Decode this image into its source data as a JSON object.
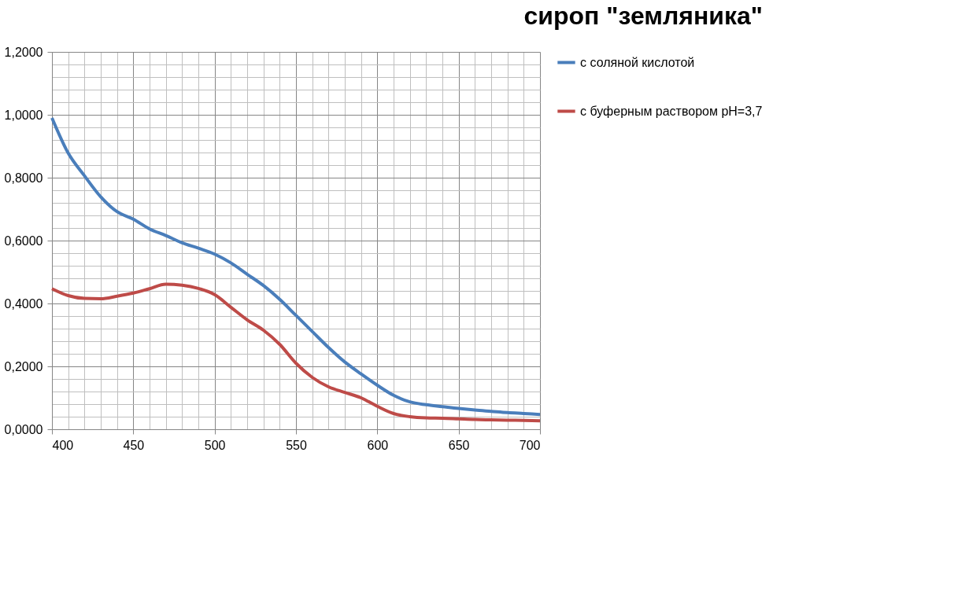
{
  "chart_data": {
    "type": "line",
    "title": "сироп \"земляника\"",
    "x": [
      400,
      410,
      420,
      430,
      440,
      450,
      460,
      470,
      480,
      490,
      500,
      510,
      520,
      530,
      540,
      550,
      560,
      570,
      580,
      590,
      600,
      610,
      620,
      630,
      640,
      650,
      660,
      670,
      680,
      690,
      700
    ],
    "series": [
      {
        "name": "с соляной кислотой",
        "color": "#4a7ebb",
        "values": [
          0.99,
          0.878,
          0.806,
          0.739,
          0.692,
          0.668,
          0.637,
          0.616,
          0.593,
          0.576,
          0.557,
          0.529,
          0.493,
          0.457,
          0.413,
          0.362,
          0.311,
          0.26,
          0.214,
          0.176,
          0.14,
          0.108,
          0.087,
          0.078,
          0.072,
          0.066,
          0.061,
          0.057,
          0.053,
          0.05,
          0.047
        ]
      },
      {
        "name": "с буферным раствором pH=3,7",
        "color": "#be4b48",
        "values": [
          0.447,
          0.425,
          0.416,
          0.415,
          0.423,
          0.433,
          0.447,
          0.461,
          0.458,
          0.448,
          0.428,
          0.388,
          0.348,
          0.315,
          0.27,
          0.21,
          0.165,
          0.135,
          0.117,
          0.1,
          0.073,
          0.05,
          0.04,
          0.036,
          0.035,
          0.033,
          0.031,
          0.03,
          0.029,
          0.028,
          0.027
        ]
      }
    ],
    "xlim": [
      400,
      700
    ],
    "xticks": [
      400,
      {
        "value": 410,
        "label": null
      },
      {
        "value": 420,
        "label": null
      },
      {
        "value": 430,
        "label": null
      },
      {
        "value": 440,
        "label": null
      },
      450,
      {
        "value": 460,
        "label": null
      },
      {
        "value": 470,
        "label": null
      },
      {
        "value": 480,
        "label": null
      },
      {
        "value": 490,
        "label": null
      },
      500,
      {
        "value": 510,
        "label": null
      },
      {
        "value": 520,
        "label": null
      },
      {
        "value": 530,
        "label": null
      },
      {
        "value": 540,
        "label": null
      },
      550,
      {
        "value": 560,
        "label": null
      },
      {
        "value": 570,
        "label": null
      },
      {
        "value": 580,
        "label": null
      },
      {
        "value": 590,
        "label": null
      },
      600,
      {
        "value": 610,
        "label": null
      },
      {
        "value": 620,
        "label": null
      },
      {
        "value": 630,
        "label": null
      },
      {
        "value": 640,
        "label": null
      },
      650,
      {
        "value": 660,
        "label": null
      },
      {
        "value": 670,
        "label": null
      },
      {
        "value": 680,
        "label": null
      },
      {
        "value": 690,
        "label": null
      },
      700
    ],
    "ylim": [
      0,
      1.2
    ],
    "yticks": [
      {
        "value": 0,
        "label": "0,0000"
      },
      {
        "value": 0.04,
        "label": null
      },
      {
        "value": 0.08,
        "label": null
      },
      {
        "value": 0.12,
        "label": null
      },
      {
        "value": 0.16,
        "label": null
      },
      {
        "value": 0.2,
        "label": "0,2000"
      },
      {
        "value": 0.24,
        "label": null
      },
      {
        "value": 0.28,
        "label": null
      },
      {
        "value": 0.32,
        "label": null
      },
      {
        "value": 0.36,
        "label": null
      },
      {
        "value": 0.4,
        "label": "0,4000"
      },
      {
        "value": 0.44,
        "label": null
      },
      {
        "value": 0.48,
        "label": null
      },
      {
        "value": 0.52,
        "label": null
      },
      {
        "value": 0.56,
        "label": null
      },
      {
        "value": 0.6,
        "label": "0,6000"
      },
      {
        "value": 0.64,
        "label": null
      },
      {
        "value": 0.68,
        "label": null
      },
      {
        "value": 0.72,
        "label": null
      },
      {
        "value": 0.76,
        "label": null
      },
      {
        "value": 0.8,
        "label": "0,8000"
      },
      {
        "value": 0.84,
        "label": null
      },
      {
        "value": 0.88,
        "label": null
      },
      {
        "value": 0.92,
        "label": null
      },
      {
        "value": 0.96,
        "label": null
      },
      {
        "value": 1.0,
        "label": "1,0000"
      },
      {
        "value": 1.04,
        "label": null
      },
      {
        "value": 1.08,
        "label": null
      },
      {
        "value": 1.12,
        "label": null
      },
      {
        "value": 1.16,
        "label": null
      },
      {
        "value": 1.2,
        "label": "1,2000"
      }
    ],
    "grid": true,
    "legend": "right",
    "marker": "none",
    "line_style": "solid"
  }
}
